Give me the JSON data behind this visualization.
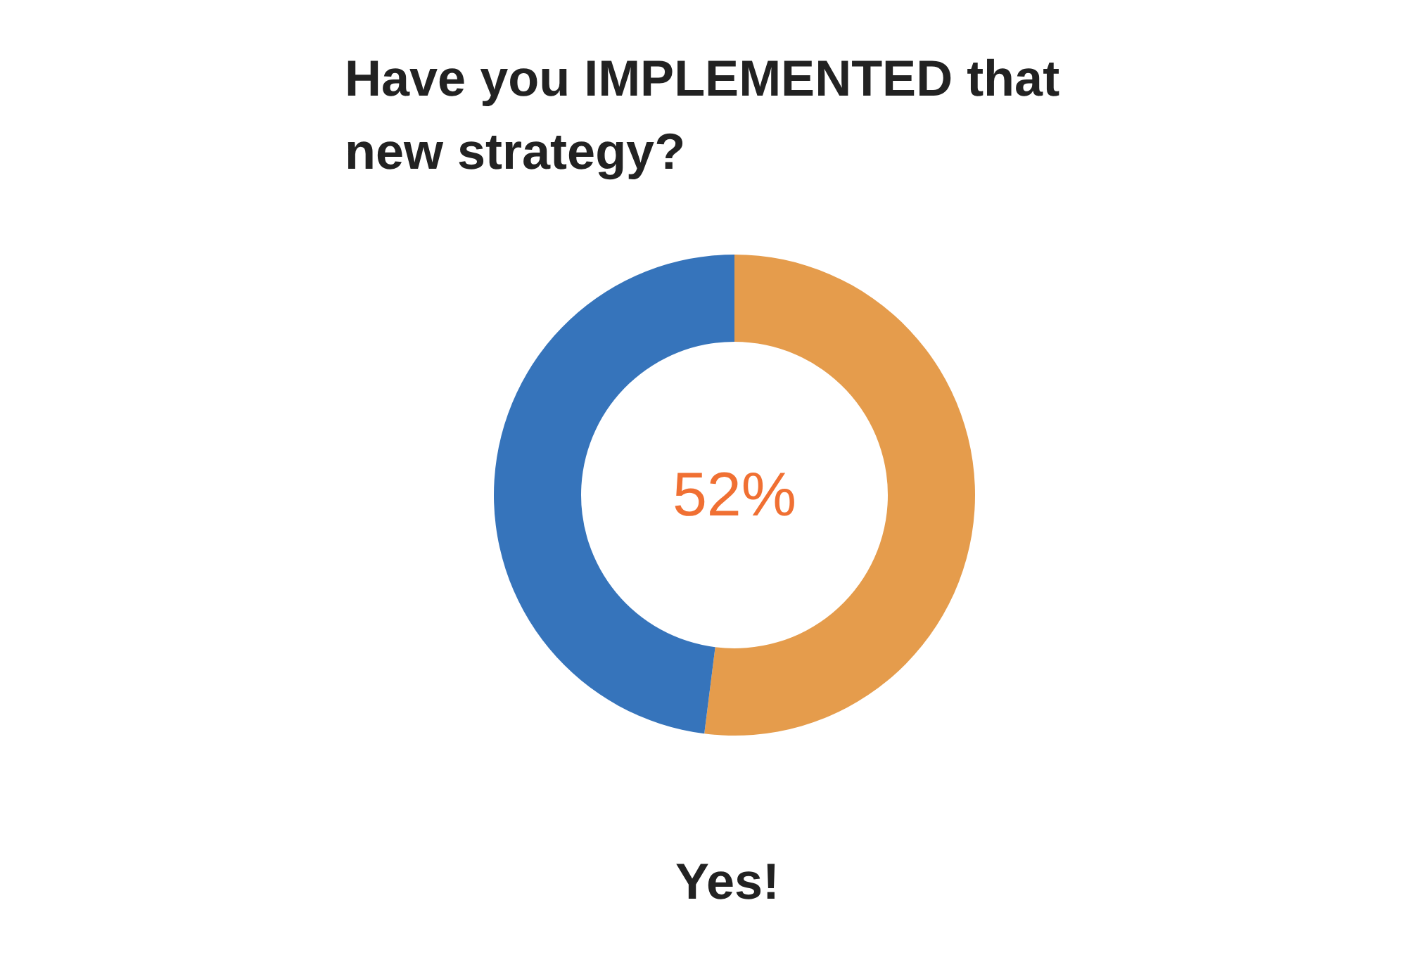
{
  "chart_data": {
    "type": "donut",
    "title": "Have you IMPLEMENTED that new strategy?",
    "categories": [
      null,
      null
    ],
    "values": [
      52,
      48
    ],
    "colors": [
      "#e59c4c",
      "#3674bb"
    ],
    "value_labels": [
      "52%",
      null
    ],
    "annotations": [
      "Yes!"
    ],
    "legend": false
  }
}
